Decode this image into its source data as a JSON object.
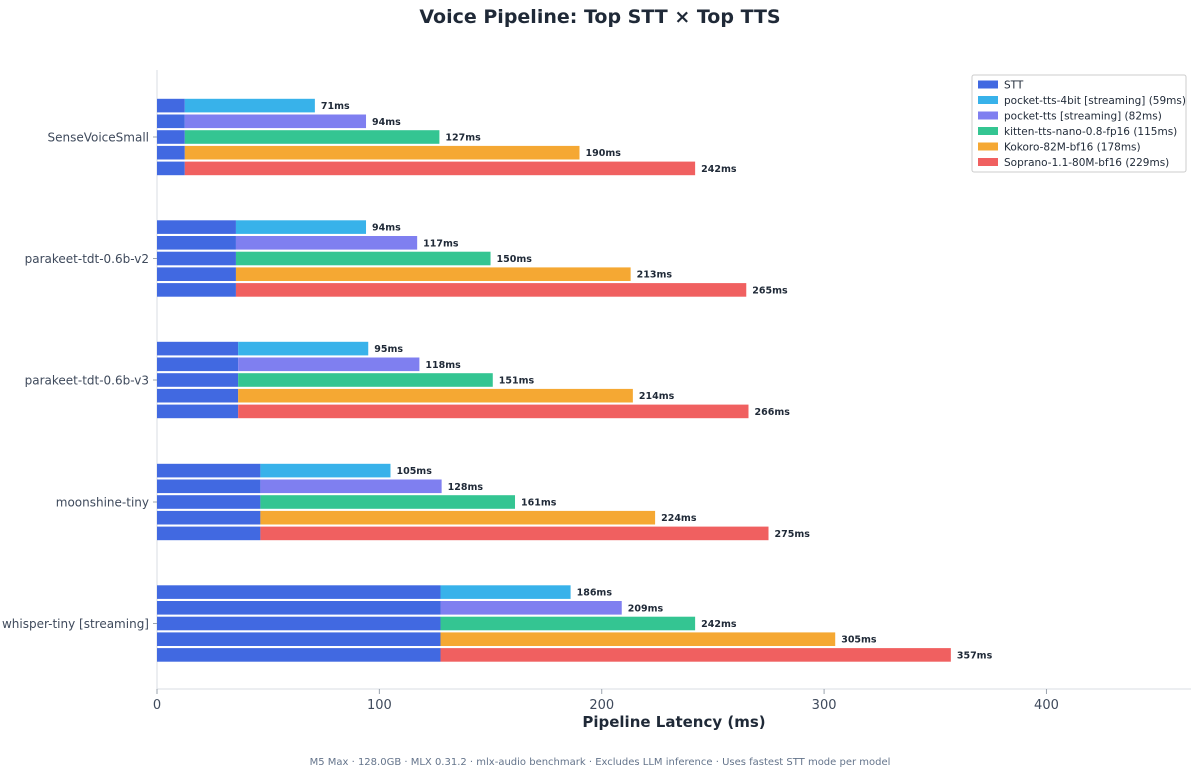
{
  "chart_data": {
    "type": "bar",
    "orientation": "horizontal",
    "stacked": true,
    "title": "Voice Pipeline: Top STT × Top TTS",
    "xlabel": "Pipeline Latency (ms)",
    "ylabel": "",
    "xlim": [
      0,
      465
    ],
    "xticks": [
      0,
      100,
      200,
      300,
      400
    ],
    "grid": false,
    "legend_position": "top-right",
    "stt_series": {
      "name": "STT",
      "color": "#4169e1"
    },
    "tts_series": [
      {
        "name": "pocket-tts-4bit [streaming] (59ms)",
        "color": "#38b2ea"
      },
      {
        "name": "pocket-tts [streaming] (82ms)",
        "color": "#7f7ff0"
      },
      {
        "name": "kitten-tts-nano-0.8-fp16 (115ms)",
        "color": "#34c592"
      },
      {
        "name": "Kokoro-82M-bf16 (178ms)",
        "color": "#f5a833"
      },
      {
        "name": "Soprano-1.1-80M-bf16 (229ms)",
        "color": "#f06060"
      }
    ],
    "groups": [
      {
        "name": "SenseVoiceSmall",
        "stt": 12.5,
        "totals": [
          71,
          94,
          127,
          190,
          242
        ],
        "labels": [
          "71ms",
          "94ms",
          "127ms",
          "190ms",
          "242ms"
        ]
      },
      {
        "name": "parakeet-tdt-0.6b-v2",
        "stt": 35.5,
        "totals": [
          94,
          117,
          150,
          213,
          265
        ],
        "labels": [
          "94ms",
          "117ms",
          "150ms",
          "213ms",
          "265ms"
        ]
      },
      {
        "name": "parakeet-tdt-0.6b-v3",
        "stt": 36.5,
        "totals": [
          95,
          118,
          151,
          214,
          266
        ],
        "labels": [
          "95ms",
          "118ms",
          "151ms",
          "214ms",
          "266ms"
        ]
      },
      {
        "name": "moonshine-tiny",
        "stt": 46.5,
        "totals": [
          105,
          128,
          161,
          224,
          275
        ],
        "labels": [
          "105ms",
          "128ms",
          "161ms",
          "224ms",
          "275ms"
        ]
      },
      {
        "name": "whisper-tiny [streaming]",
        "stt": 127.5,
        "totals": [
          186,
          209,
          242,
          305,
          357
        ],
        "labels": [
          "186ms",
          "209ms",
          "242ms",
          "305ms",
          "357ms"
        ]
      }
    ],
    "footnote": "M5 Max · 128.0GB · MLX 0.31.2 · mlx-audio benchmark · Excludes LLM inference · Uses fastest STT mode per model"
  }
}
